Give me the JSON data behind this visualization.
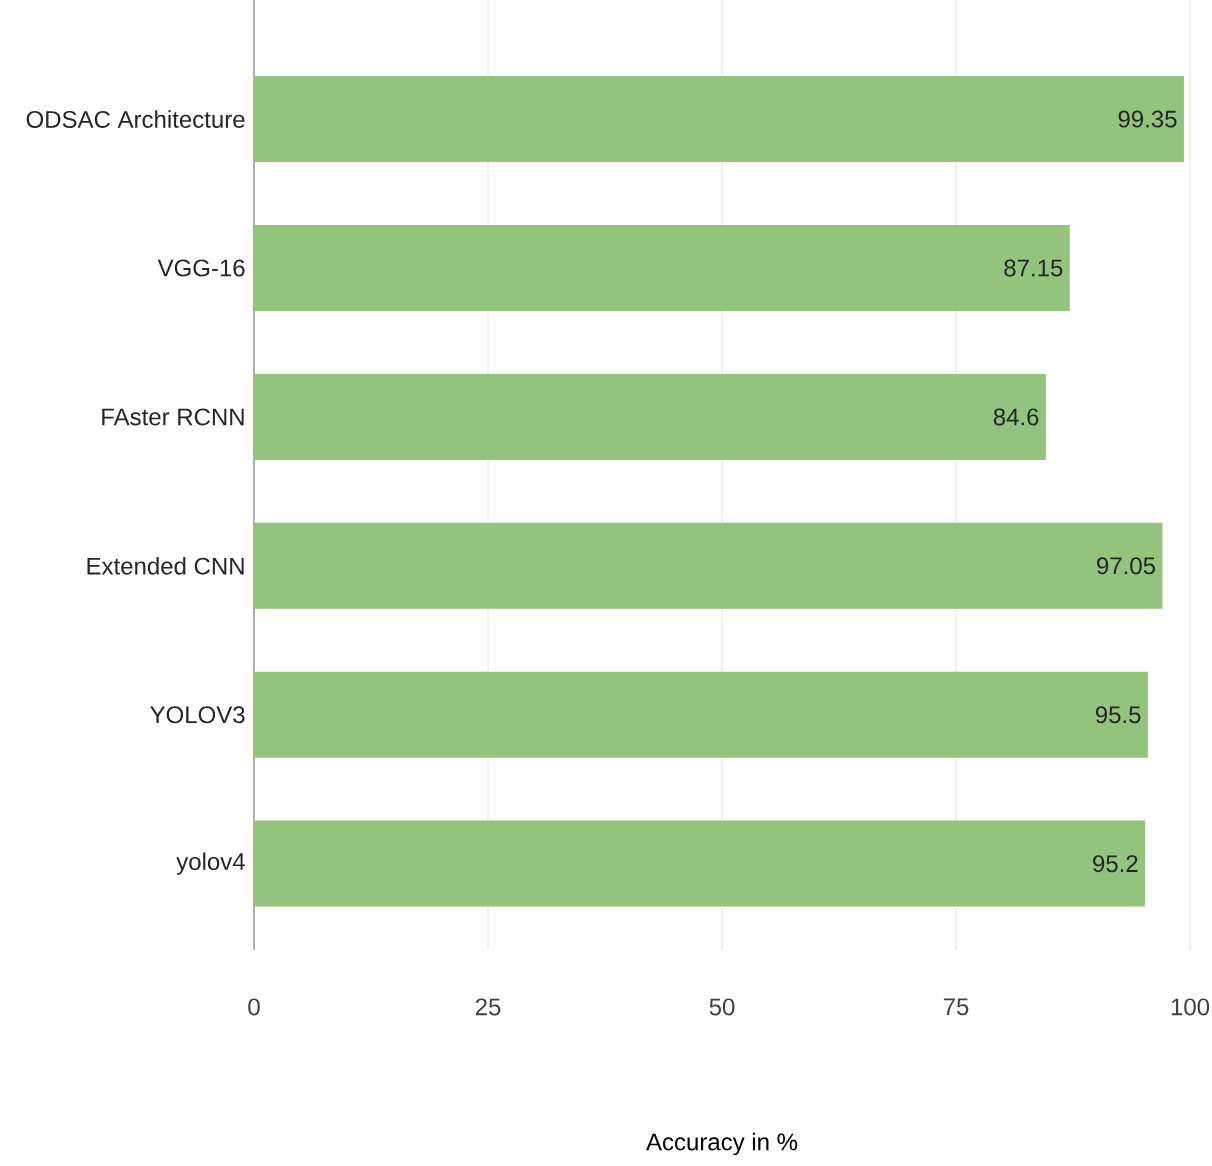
{
  "chart_data": {
    "type": "bar",
    "orientation": "horizontal",
    "xlabel": "Accuracy in %",
    "categories": [
      "ODSAC Architecture",
      "VGG-16",
      "FAster RCNN",
      "Extended CNN",
      "YOLOV3",
      "yolov4"
    ],
    "values": [
      99.35,
      87.15,
      84.6,
      97.05,
      95.5,
      95.2
    ],
    "color": "#93c47d",
    "xlim": [
      0,
      100
    ],
    "xticks": [
      0,
      25,
      50,
      75,
      100
    ],
    "grid": "x",
    "data_labels": true
  }
}
